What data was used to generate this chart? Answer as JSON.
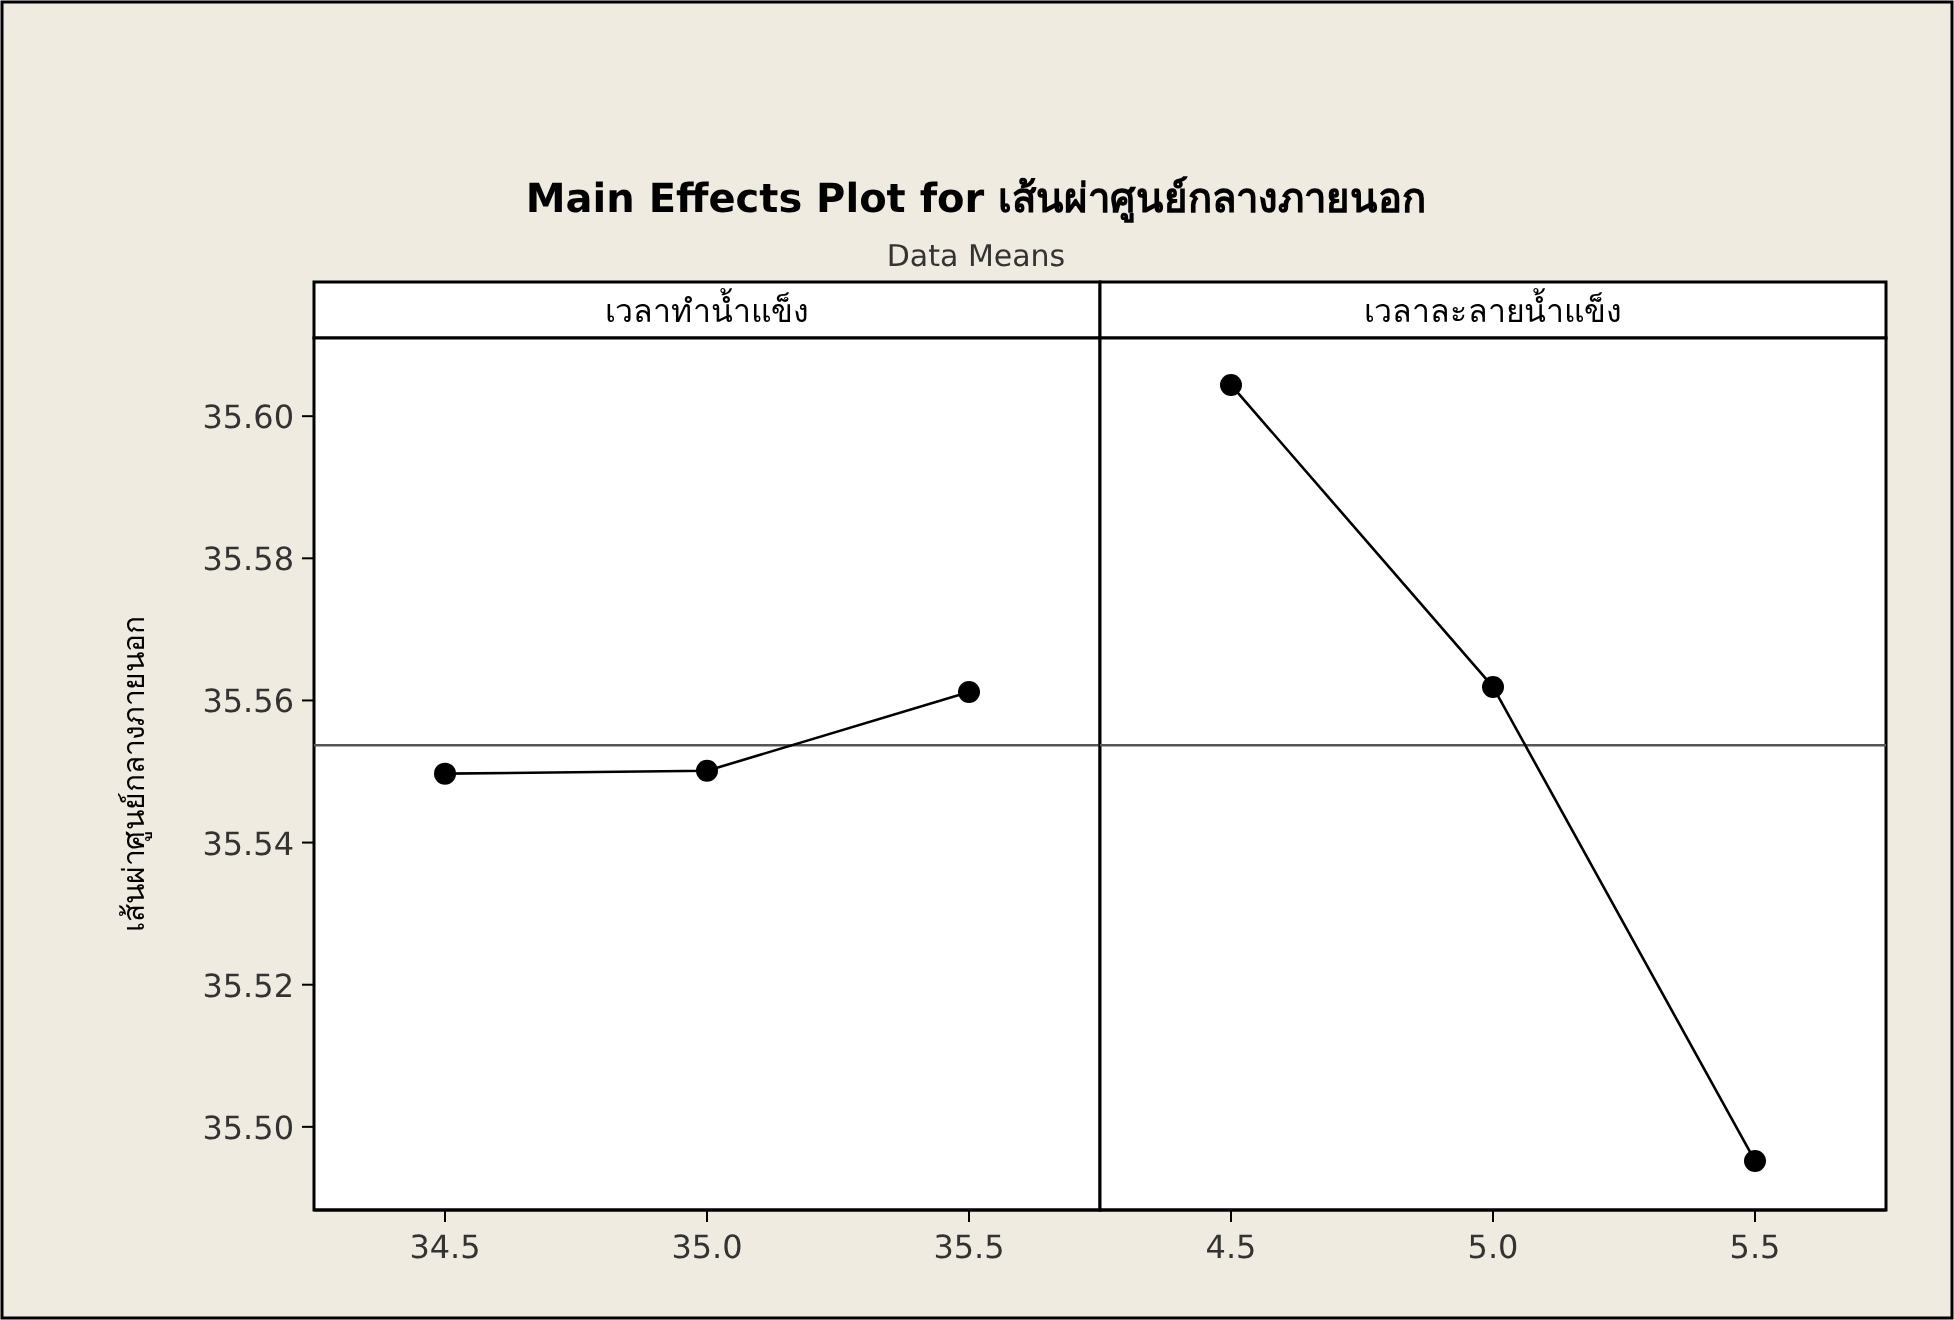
{
  "chart_data": [
    {
      "type": "other",
      "title": "Main Effects Plot for เส้นผ่าศูนย์กลางภายนอก",
      "subtitle": "Data Means"
    },
    {
      "type": "line",
      "title": "เวลาทำน้ำแข็ง",
      "ylabel": "เส้นผ่าศูนย์กลางภายนอก",
      "x": [
        34.5,
        35.0,
        35.5
      ],
      "series": [
        {
          "color": "#000000",
          "values": [
            35.5497,
            35.5501,
            35.5612
          ]
        }
      ],
      "xlim": [
        34.25,
        35.75
      ],
      "xticks": [
        34.5,
        {
          "value": 35,
          "label": "35.0"
        },
        35.5
      ],
      "ylim": [
        35.4883,
        35.611
      ],
      "yticks": [
        {
          "value": 35.5,
          "label": "35.50"
        },
        {
          "value": 35.52,
          "label": "35.52"
        },
        {
          "value": 35.54,
          "label": "35.54"
        },
        {
          "value": 35.56,
          "label": "35.56"
        },
        {
          "value": 35.58,
          "label": "35.58"
        },
        {
          "value": 35.6,
          "label": "35.60"
        }
      ],
      "ref_lines": [
        {
          "axis": "y",
          "value": 35.5537,
          "color": "#555555"
        }
      ],
      "marker": "circle"
    },
    {
      "type": "line",
      "title": "เวลาละลายน้ำแข็ง",
      "x": [
        4.5,
        5.0,
        5.5
      ],
      "series": [
        {
          "color": "#000000",
          "values": [
            35.6044,
            35.5619,
            35.4952
          ]
        }
      ],
      "xlim": [
        4.25,
        5.75
      ],
      "xticks": [
        4.5,
        {
          "value": 5,
          "label": "5.0"
        },
        5.5
      ],
      "ylim": [
        35.4883,
        35.611
      ],
      "ref_lines": [
        {
          "axis": "y",
          "value": 35.5537,
          "color": "#555555"
        }
      ],
      "marker": "circle",
      "tick_labels": "x"
    }
  ]
}
